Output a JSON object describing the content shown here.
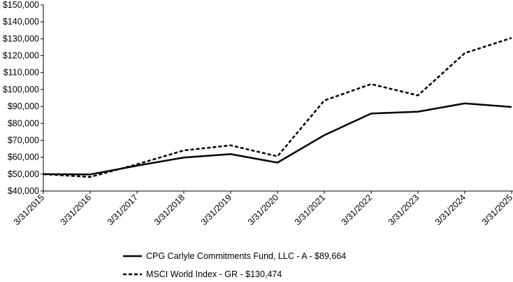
{
  "chart_data": {
    "type": "line",
    "title": "",
    "xlabel": "",
    "ylabel": "",
    "categories": [
      "3/31/2015",
      "3/31/2016",
      "3/31/2017",
      "3/31/2018",
      "3/31/2019",
      "3/31/2020",
      "3/31/2021",
      "3/31/2022",
      "3/31/2023",
      "3/31/2024",
      "3/31/2025"
    ],
    "y_tick_labels": [
      "$40,000",
      "$50,000",
      "$60,000",
      "$70,000",
      "$80,000",
      "$90,000",
      "$100,000",
      "$110,000",
      "$120,000",
      "$130,000",
      "$140,000",
      "$150,000"
    ],
    "ylim": [
      40000,
      150000
    ],
    "grid": false,
    "legend_position": "bottom",
    "series": [
      {
        "name": "CPG Carlyle Commitments Fund, LLC - A - $89,664",
        "style": "solid",
        "color": "#000000",
        "values": [
          50000,
          49800,
          55000,
          59800,
          61800,
          56800,
          73000,
          85800,
          86900,
          91800,
          89664
        ]
      },
      {
        "name": "MSCI World Index - GR - $130,474",
        "style": "dashed",
        "color": "#000000",
        "values": [
          50000,
          48300,
          55800,
          64000,
          67000,
          60500,
          93500,
          103200,
          96500,
          121500,
          130474
        ]
      }
    ]
  }
}
